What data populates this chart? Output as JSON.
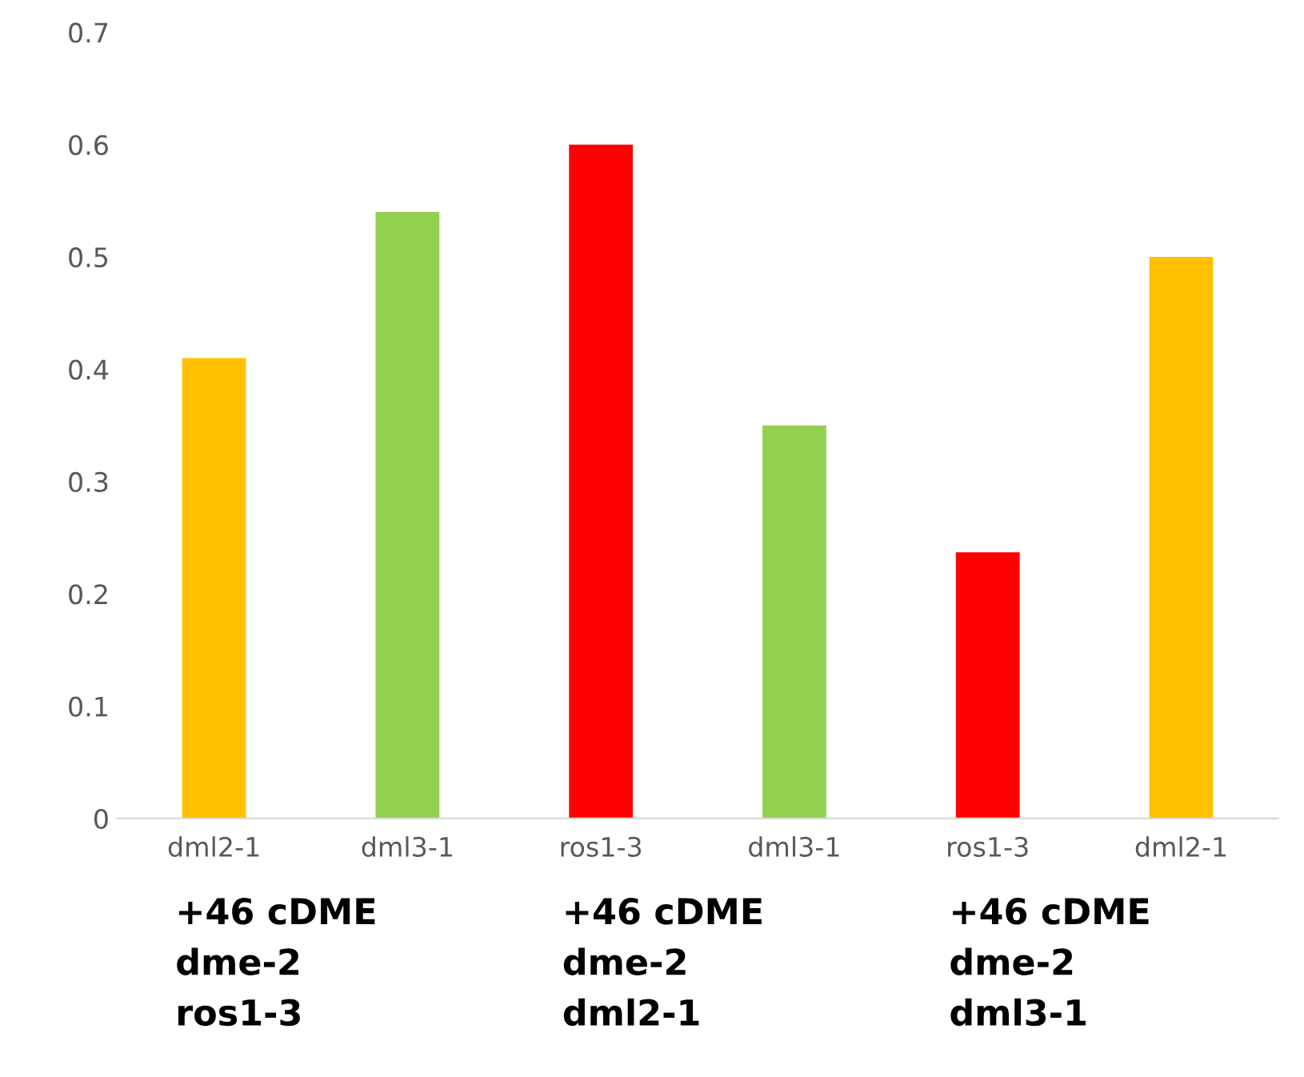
{
  "chart_data": {
    "type": "bar",
    "categories": [
      "dml2-1",
      "dml3-1",
      "ros1-3",
      "dml3-1",
      "ros1-3",
      "dml2-1"
    ],
    "values": [
      0.41,
      0.54,
      0.6,
      0.35,
      0.237,
      0.5
    ],
    "colors": [
      "#ffc000",
      "#92d050",
      "#ff0000",
      "#92d050",
      "#ff0000",
      "#ffc000"
    ],
    "ylim": [
      0,
      0.7
    ],
    "yticks": [
      0,
      0.1,
      0.2,
      0.3,
      0.4,
      0.5,
      0.6,
      0.7
    ],
    "grid": false,
    "annotations": [
      "+46 cDME\ndme-2\nros1-3",
      "+46 cDME\ndme-2\ndml2-1",
      "+46 cDME\ndme-2\ndml3-1"
    ]
  }
}
